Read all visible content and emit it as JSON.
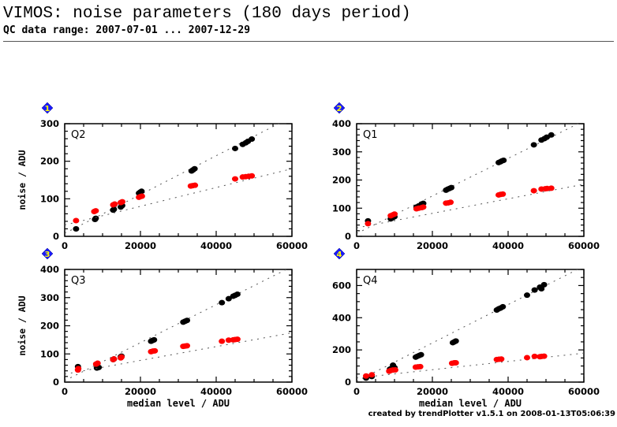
{
  "header": {
    "title": "VIMOS: noise parameters (180 days period)",
    "subtitle": "QC data range: 2007-07-01 ... 2007-12-29"
  },
  "footer": "created by trendPlotter v1.5.1 on 2008-01-13T05:06:39",
  "colors": {
    "black_series": "#000000",
    "red_series": "#ff0000",
    "badge": "#1a1aff",
    "badge_text": "#ffff00"
  },
  "chart_data": [
    {
      "type": "scatter",
      "badge": "1",
      "label": "Q2",
      "xlabel": "",
      "ylabel": "noise / ADU",
      "xlim": [
        0,
        60000
      ],
      "ylim": [
        0,
        300
      ],
      "xticks": [
        0,
        20000,
        40000,
        60000
      ],
      "yticks": [
        0,
        100,
        200,
        300
      ],
      "xminor": 5000,
      "yminor": 20,
      "series": [
        {
          "name": "black",
          "color": "#000000",
          "points": [
            [
              3000,
              20
            ],
            [
              8000,
              45
            ],
            [
              8200,
              48
            ],
            [
              12800,
              70
            ],
            [
              13000,
              72
            ],
            [
              14800,
              78
            ],
            [
              15200,
              82
            ],
            [
              19600,
              115
            ],
            [
              20000,
              118
            ],
            [
              20300,
              120
            ],
            [
              33500,
              174
            ],
            [
              33900,
              177
            ],
            [
              34300,
              180
            ],
            [
              45000,
              234
            ],
            [
              47000,
              245
            ],
            [
              47800,
              249
            ],
            [
              48400,
              253
            ],
            [
              49400,
              259
            ]
          ],
          "fit": [
            [
              0,
              8
            ],
            [
              60000,
              318
            ]
          ]
        },
        {
          "name": "red",
          "color": "#ff0000",
          "points": [
            [
              3000,
              42
            ],
            [
              7800,
              66
            ],
            [
              8200,
              68
            ],
            [
              12800,
              84
            ],
            [
              13200,
              86
            ],
            [
              14800,
              90
            ],
            [
              15200,
              92
            ],
            [
              19600,
              104
            ],
            [
              20000,
              106
            ],
            [
              20400,
              107
            ],
            [
              33300,
              134
            ],
            [
              33800,
              135
            ],
            [
              34400,
              136
            ],
            [
              45000,
              153
            ],
            [
              47000,
              158
            ],
            [
              47800,
              159
            ],
            [
              48600,
              160
            ],
            [
              49400,
              161
            ]
          ],
          "fit": [
            [
              0,
              30
            ],
            [
              60000,
              180
            ]
          ]
        }
      ]
    },
    {
      "type": "scatter",
      "badge": "2",
      "label": "Q1",
      "xlabel": "",
      "ylabel": "",
      "xlim": [
        0,
        60000
      ],
      "ylim": [
        0,
        400
      ],
      "xticks": [
        0,
        20000,
        40000,
        60000
      ],
      "yticks": [
        0,
        100,
        200,
        300,
        400
      ],
      "xminor": 5000,
      "yminor": 20,
      "series": [
        {
          "name": "black",
          "color": "#000000",
          "points": [
            [
              3000,
              55
            ],
            [
              9000,
              62
            ],
            [
              9500,
              66
            ],
            [
              10000,
              70
            ],
            [
              15800,
              104
            ],
            [
              16400,
              108
            ],
            [
              17200,
              115
            ],
            [
              17600,
              117
            ],
            [
              23600,
              164
            ],
            [
              24000,
              167
            ],
            [
              24500,
              170
            ],
            [
              25000,
              173
            ],
            [
              37500,
              262
            ],
            [
              38000,
              265
            ],
            [
              38400,
              268
            ],
            [
              38800,
              270
            ],
            [
              46800,
              325
            ],
            [
              48800,
              342
            ],
            [
              49600,
              347
            ],
            [
              50200,
              352
            ],
            [
              51400,
              360
            ]
          ],
          "fit": [
            [
              0,
              10
            ],
            [
              60000,
              410
            ]
          ]
        },
        {
          "name": "red",
          "color": "#ff0000",
          "points": [
            [
              3000,
              45
            ],
            [
              9000,
              73
            ],
            [
              9500,
              76
            ],
            [
              10000,
              79
            ],
            [
              15800,
              98
            ],
            [
              16400,
              100
            ],
            [
              17200,
              102
            ],
            [
              17600,
              104
            ],
            [
              23600,
              118
            ],
            [
              24200,
              119
            ],
            [
              24800,
              121
            ],
            [
              37500,
              147
            ],
            [
              38000,
              149
            ],
            [
              38600,
              150
            ],
            [
              46800,
              162
            ],
            [
              48800,
              168
            ],
            [
              49800,
              169
            ],
            [
              50300,
              170
            ],
            [
              51400,
              171
            ]
          ],
          "fit": [
            [
              0,
              30
            ],
            [
              60000,
              185
            ]
          ]
        }
      ]
    },
    {
      "type": "scatter",
      "badge": "3",
      "label": "Q3",
      "xlabel": "median level / ADU",
      "ylabel": "noise / ADU",
      "xlim": [
        0,
        60000
      ],
      "ylim": [
        0,
        400
      ],
      "xticks": [
        0,
        20000,
        40000,
        60000
      ],
      "yticks": [
        0,
        100,
        200,
        300,
        400
      ],
      "xminor": 5000,
      "yminor": 20,
      "series": [
        {
          "name": "black",
          "color": "#000000",
          "points": [
            [
              3500,
              55
            ],
            [
              8500,
              50
            ],
            [
              9000,
              52
            ],
            [
              12800,
              80
            ],
            [
              13000,
              82
            ],
            [
              14800,
              90
            ],
            [
              15000,
              92
            ],
            [
              22800,
              145
            ],
            [
              23200,
              148
            ],
            [
              23600,
              150
            ],
            [
              31300,
              213
            ],
            [
              31800,
              216
            ],
            [
              32300,
              219
            ],
            [
              41500,
              282
            ],
            [
              43300,
              296
            ],
            [
              44500,
              305
            ],
            [
              45000,
              308
            ],
            [
              45600,
              312
            ]
          ],
          "fit": [
            [
              0,
              5
            ],
            [
              60000,
              410
            ]
          ]
        },
        {
          "name": "red",
          "color": "#ff0000",
          "points": [
            [
              3500,
              43
            ],
            [
              3600,
              48
            ],
            [
              8300,
              64
            ],
            [
              8700,
              67
            ],
            [
              12800,
              80
            ],
            [
              13000,
              82
            ],
            [
              14800,
              86
            ],
            [
              15000,
              89
            ],
            [
              22800,
              108
            ],
            [
              23300,
              110
            ],
            [
              23800,
              111
            ],
            [
              31300,
              127
            ],
            [
              31800,
              128
            ],
            [
              32300,
              129
            ],
            [
              41500,
              145
            ],
            [
              43300,
              149
            ],
            [
              44500,
              150
            ],
            [
              45000,
              151
            ],
            [
              45600,
              152
            ]
          ],
          "fit": [
            [
              0,
              28
            ],
            [
              60000,
              175
            ]
          ]
        }
      ]
    },
    {
      "type": "scatter",
      "badge": "4",
      "label": "Q4",
      "xlabel": "median level / ADU",
      "ylabel": "",
      "xlim": [
        0,
        60000
      ],
      "ylim": [
        0,
        700
      ],
      "xticks": [
        0,
        20000,
        40000,
        60000
      ],
      "yticks": [
        0,
        200,
        400,
        600
      ],
      "xminor": 5000,
      "yminor": 50,
      "series": [
        {
          "name": "black",
          "color": "#000000",
          "points": [
            [
              2500,
              25
            ],
            [
              4000,
              35
            ],
            [
              8800,
              80
            ],
            [
              9200,
              85
            ],
            [
              9600,
              105
            ],
            [
              10000,
              90
            ],
            [
              15600,
              155
            ],
            [
              16000,
              160
            ],
            [
              16500,
              165
            ],
            [
              17000,
              170
            ],
            [
              25400,
              245
            ],
            [
              25800,
              250
            ],
            [
              26200,
              255
            ],
            [
              37000,
              448
            ],
            [
              37500,
              455
            ],
            [
              38000,
              460
            ],
            [
              38600,
              468
            ],
            [
              45000,
              540
            ],
            [
              47000,
              572
            ],
            [
              48400,
              590
            ],
            [
              48800,
              580
            ],
            [
              49500,
              605
            ]
          ],
          "fit": [
            [
              0,
              5
            ],
            [
              60000,
              720
            ]
          ]
        },
        {
          "name": "red",
          "color": "#ff0000",
          "points": [
            [
              2500,
              38
            ],
            [
              4000,
              45
            ],
            [
              8600,
              68
            ],
            [
              9000,
              72
            ],
            [
              9600,
              75
            ],
            [
              10200,
              76
            ],
            [
              15600,
              93
            ],
            [
              16200,
              95
            ],
            [
              16800,
              96
            ],
            [
              25200,
              117
            ],
            [
              25800,
              120
            ],
            [
              26200,
              120
            ],
            [
              37000,
              140
            ],
            [
              37600,
              142
            ],
            [
              38200,
              143
            ],
            [
              45000,
              152
            ],
            [
              47000,
              160
            ],
            [
              48400,
              158
            ],
            [
              48900,
              160
            ],
            [
              49500,
              161
            ]
          ],
          "fit": [
            [
              0,
              25
            ],
            [
              60000,
              180
            ]
          ]
        }
      ]
    }
  ]
}
